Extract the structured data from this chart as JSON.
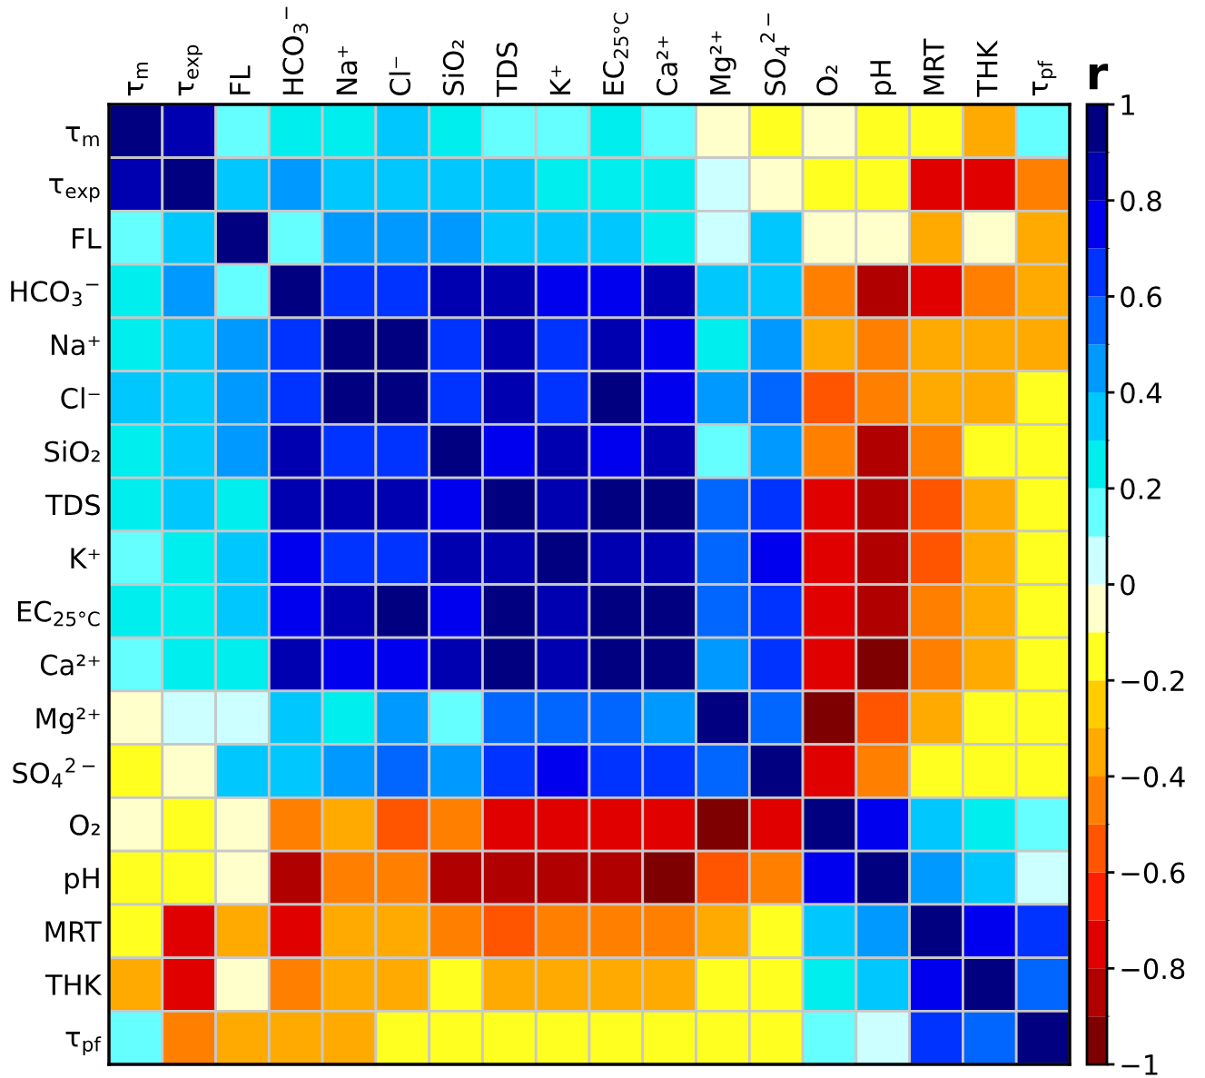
{
  "chart_data": {
    "type": "heatmap",
    "clabel": "r",
    "categories": [
      "τ$_{m}$",
      "τ$_{exp}$",
      "FL",
      "HCO$_{3}$$^{−}$",
      "Na⁺",
      "Cl⁻",
      "SiO₂",
      "TDS",
      "K⁺",
      "EC$_{25°C}$",
      "Ca²⁺",
      "Mg²⁺",
      "SO$_{4}$$^{2−}$",
      "O₂",
      "pH",
      "MRT",
      "THK",
      "τ$_{pf}$"
    ],
    "y_categories": [
      "τ$_{m}$",
      "τ$_{exp}$",
      "FL",
      "HCO$_{3}$$^{−}$",
      "Na⁺",
      "Cl⁻",
      "SiO₂",
      "TDS",
      "K⁺",
      "EC$_{25°C}$",
      "Ca²⁺",
      "Mg²⁺",
      "SO$_{4}$$^{2−}$",
      "O₂",
      "pH",
      "MRT",
      "THK",
      "τ$_{pf}$"
    ],
    "cells": [
      [
        1,
        0.85,
        0.15,
        0.25,
        0.25,
        0.35,
        0.25,
        0.15,
        0.15,
        0.25,
        0.15,
        -0.05,
        -0.15,
        -0.05,
        -0.15,
        -0.15,
        -0.35,
        0.15
      ],
      [
        0.85,
        1,
        0.35,
        0.45,
        0.35,
        0.35,
        0.35,
        0.35,
        0.25,
        0.25,
        0.25,
        0.05,
        -0.05,
        -0.15,
        -0.15,
        -0.75,
        -0.75,
        -0.45
      ],
      [
        0.15,
        0.35,
        1,
        0.15,
        0.45,
        0.45,
        0.45,
        0.35,
        0.35,
        0.35,
        0.25,
        0.05,
        0.35,
        -0.05,
        -0.05,
        -0.35,
        -0.05,
        -0.35
      ],
      [
        0.25,
        0.45,
        0.15,
        1,
        0.65,
        0.65,
        0.85,
        0.85,
        0.75,
        0.75,
        0.85,
        0.35,
        0.35,
        -0.45,
        -0.85,
        -0.75,
        -0.45,
        -0.35
      ],
      [
        0.25,
        0.35,
        0.45,
        0.65,
        1,
        0.95,
        0.65,
        0.85,
        0.65,
        0.85,
        0.75,
        0.25,
        0.45,
        -0.35,
        -0.45,
        -0.35,
        -0.35,
        -0.35
      ],
      [
        0.35,
        0.35,
        0.45,
        0.65,
        0.95,
        1,
        0.65,
        0.85,
        0.65,
        0.95,
        0.75,
        0.45,
        0.55,
        -0.55,
        -0.45,
        -0.35,
        -0.35,
        -0.15
      ],
      [
        0.25,
        0.35,
        0.45,
        0.85,
        0.65,
        0.65,
        1,
        0.75,
        0.85,
        0.75,
        0.85,
        0.15,
        0.45,
        -0.45,
        -0.85,
        -0.45,
        -0.15,
        -0.15
      ],
      [
        0.25,
        0.35,
        0.25,
        0.85,
        0.85,
        0.85,
        0.75,
        1,
        0.85,
        0.95,
        0.95,
        0.55,
        0.65,
        -0.75,
        -0.85,
        -0.55,
        -0.35,
        -0.15
      ],
      [
        0.15,
        0.25,
        0.35,
        0.75,
        0.65,
        0.65,
        0.85,
        0.85,
        1,
        0.85,
        0.85,
        0.55,
        0.75,
        -0.75,
        -0.85,
        -0.55,
        -0.35,
        -0.15
      ],
      [
        0.25,
        0.25,
        0.35,
        0.75,
        0.85,
        0.95,
        0.75,
        0.95,
        0.85,
        1,
        0.95,
        0.55,
        0.65,
        -0.75,
        -0.85,
        -0.45,
        -0.35,
        -0.15
      ],
      [
        0.15,
        0.25,
        0.25,
        0.85,
        0.75,
        0.75,
        0.85,
        0.95,
        0.85,
        0.95,
        1,
        0.45,
        0.65,
        -0.75,
        -0.95,
        -0.45,
        -0.35,
        -0.15
      ],
      [
        -0.05,
        0.05,
        0.05,
        0.35,
        0.25,
        0.45,
        0.15,
        0.55,
        0.55,
        0.55,
        0.45,
        1,
        0.55,
        -0.95,
        -0.55,
        -0.35,
        -0.15,
        -0.15
      ],
      [
        -0.15,
        -0.05,
        0.35,
        0.35,
        0.45,
        0.55,
        0.45,
        0.65,
        0.75,
        0.65,
        0.65,
        0.55,
        1,
        -0.75,
        -0.45,
        -0.15,
        -0.15,
        -0.15
      ],
      [
        -0.05,
        -0.15,
        -0.05,
        -0.45,
        -0.35,
        -0.55,
        -0.45,
        -0.75,
        -0.75,
        -0.75,
        -0.75,
        -0.95,
        -0.75,
        1,
        0.75,
        0.35,
        0.25,
        0.15
      ],
      [
        -0.15,
        -0.15,
        -0.05,
        -0.85,
        -0.45,
        -0.45,
        -0.85,
        -0.85,
        -0.85,
        -0.85,
        -0.95,
        -0.55,
        -0.45,
        0.75,
        1,
        0.45,
        0.35,
        0.05
      ],
      [
        -0.15,
        -0.75,
        -0.35,
        -0.75,
        -0.35,
        -0.35,
        -0.45,
        -0.55,
        -0.45,
        -0.45,
        -0.45,
        -0.35,
        -0.15,
        0.35,
        0.45,
        1,
        0.75,
        0.65
      ],
      [
        -0.35,
        -0.75,
        -0.05,
        -0.45,
        -0.35,
        -0.35,
        -0.15,
        -0.35,
        -0.35,
        -0.35,
        -0.35,
        -0.15,
        -0.15,
        0.25,
        0.35,
        0.75,
        1,
        0.55
      ],
      [
        0.15,
        -0.45,
        -0.35,
        -0.35,
        -0.35,
        -0.15,
        -0.15,
        -0.15,
        -0.15,
        -0.15,
        -0.15,
        -0.15,
        -0.15,
        0.15,
        0.05,
        0.65,
        0.55,
        1
      ]
    ],
    "clim": [
      -1,
      1
    ],
    "cticks": [
      1,
      0.8,
      0.6,
      0.4,
      0.2,
      0,
      {
        "value": -0.2,
        "label": "−0.2"
      },
      {
        "value": -0.4,
        "label": "−0.4"
      },
      {
        "value": -0.6,
        "label": "−0.6"
      },
      {
        "value": -0.8,
        "label": "−0.8"
      },
      {
        "value": -1,
        "label": "−1"
      }
    ]
  }
}
